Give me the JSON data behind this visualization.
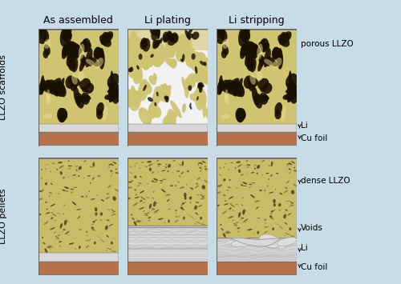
{
  "background_color": "#c8dce8",
  "col_titles": [
    "As assembled",
    "Li plating",
    "Li stripping"
  ],
  "row_labels": [
    "LLZO scaffolds",
    "LLZO pellets"
  ],
  "llzo_color": "#cfc472",
  "llzo_dense_color": "#c8bc68",
  "cu_foil_color": "#b5724a",
  "li_color": "#e4e4e4",
  "border_color": "#666666",
  "pore_dark": "#1a1000",
  "col_title_fontsize": 9.0,
  "row_label_fontsize": 8.0,
  "annotation_fontsize": 7.5,
  "figsize": [
    5.0,
    3.55
  ],
  "dpi": 100
}
